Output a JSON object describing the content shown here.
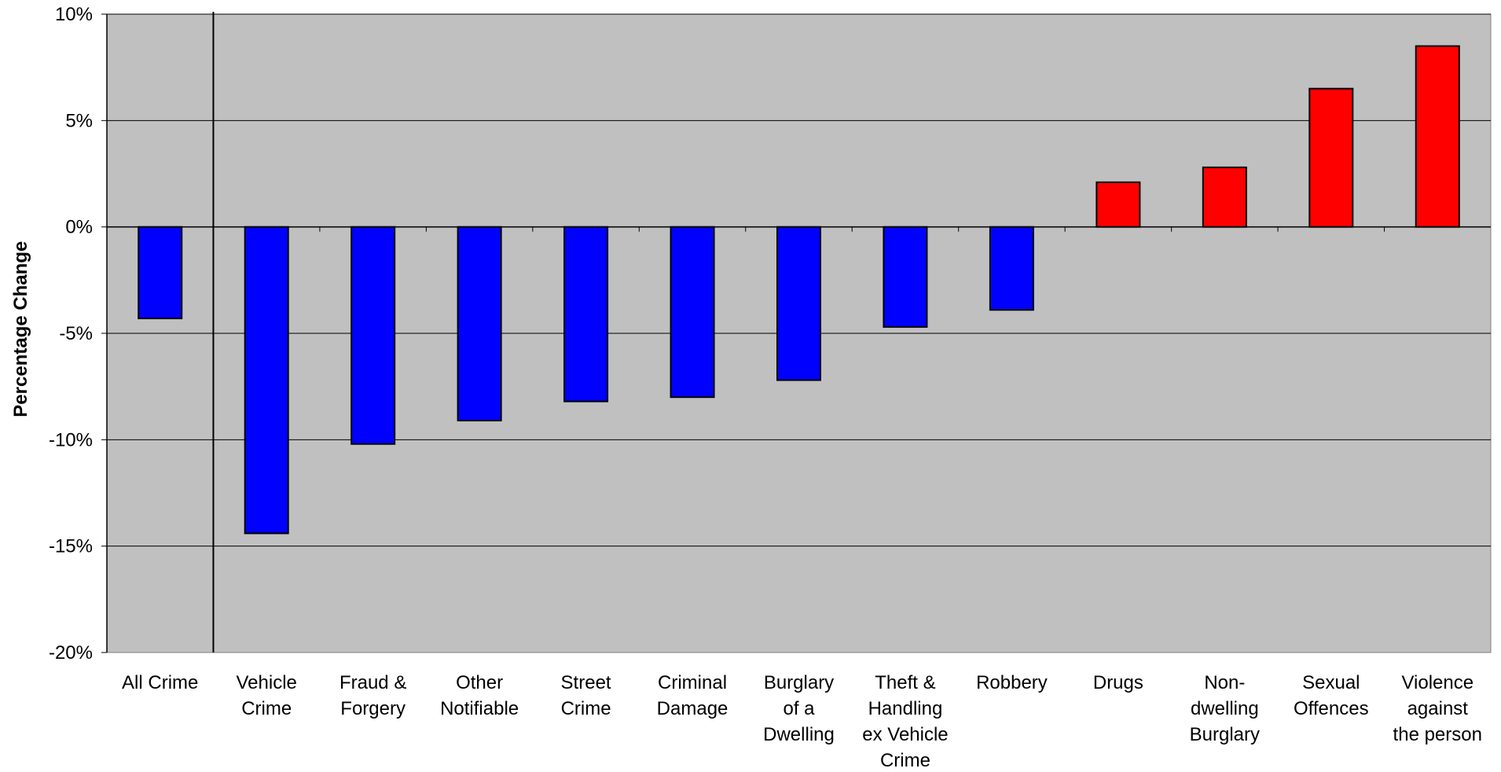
{
  "chart_data": {
    "type": "bar",
    "title": "",
    "xlabel": "",
    "ylabel": "Percentage Change",
    "ylim": [
      -20,
      10
    ],
    "y_ticks": [
      10,
      5,
      0,
      -5,
      -10,
      -15,
      -20
    ],
    "y_tick_labels": [
      "10%",
      "5%",
      "0%",
      "-5%",
      "-10%",
      "-15%",
      "-20%"
    ],
    "grid": true,
    "legend": "none",
    "colors": {
      "plot_background": "#c0c0c0",
      "negative": "#0000ff",
      "positive": "#ff0000",
      "gridline": "#000000"
    },
    "categories": [
      "All Crime",
      "Vehicle Crime",
      "Fraud & Forgery",
      "Other Notifiable",
      "Street Crime",
      "Criminal Damage",
      "Burglary of a Dwelling",
      "Theft & Handling ex Vehicle Crime",
      "Robbery",
      "Drugs",
      "Non-dwelling Burglary",
      "Sexual Offences",
      "Violence against the person"
    ],
    "category_label_lines": [
      [
        "All Crime"
      ],
      [
        "Vehicle",
        "Crime"
      ],
      [
        "Fraud &",
        "Forgery"
      ],
      [
        "Other",
        "Notifiable"
      ],
      [
        "Street",
        "Crime"
      ],
      [
        "Criminal",
        "Damage"
      ],
      [
        "Burglary",
        "of a",
        "Dwelling"
      ],
      [
        "Theft &",
        "Handling",
        "ex Vehicle",
        "Crime"
      ],
      [
        "Robbery"
      ],
      [
        "Drugs"
      ],
      [
        "Non-",
        "dwelling",
        "Burglary"
      ],
      [
        "Sexual",
        "Offences"
      ],
      [
        "Violence",
        "against",
        "the person"
      ]
    ],
    "values": [
      -4.3,
      -14.4,
      -10.2,
      -9.1,
      -8.2,
      -8.0,
      -7.2,
      -4.7,
      -3.9,
      2.1,
      2.8,
      6.5,
      8.5
    ]
  }
}
